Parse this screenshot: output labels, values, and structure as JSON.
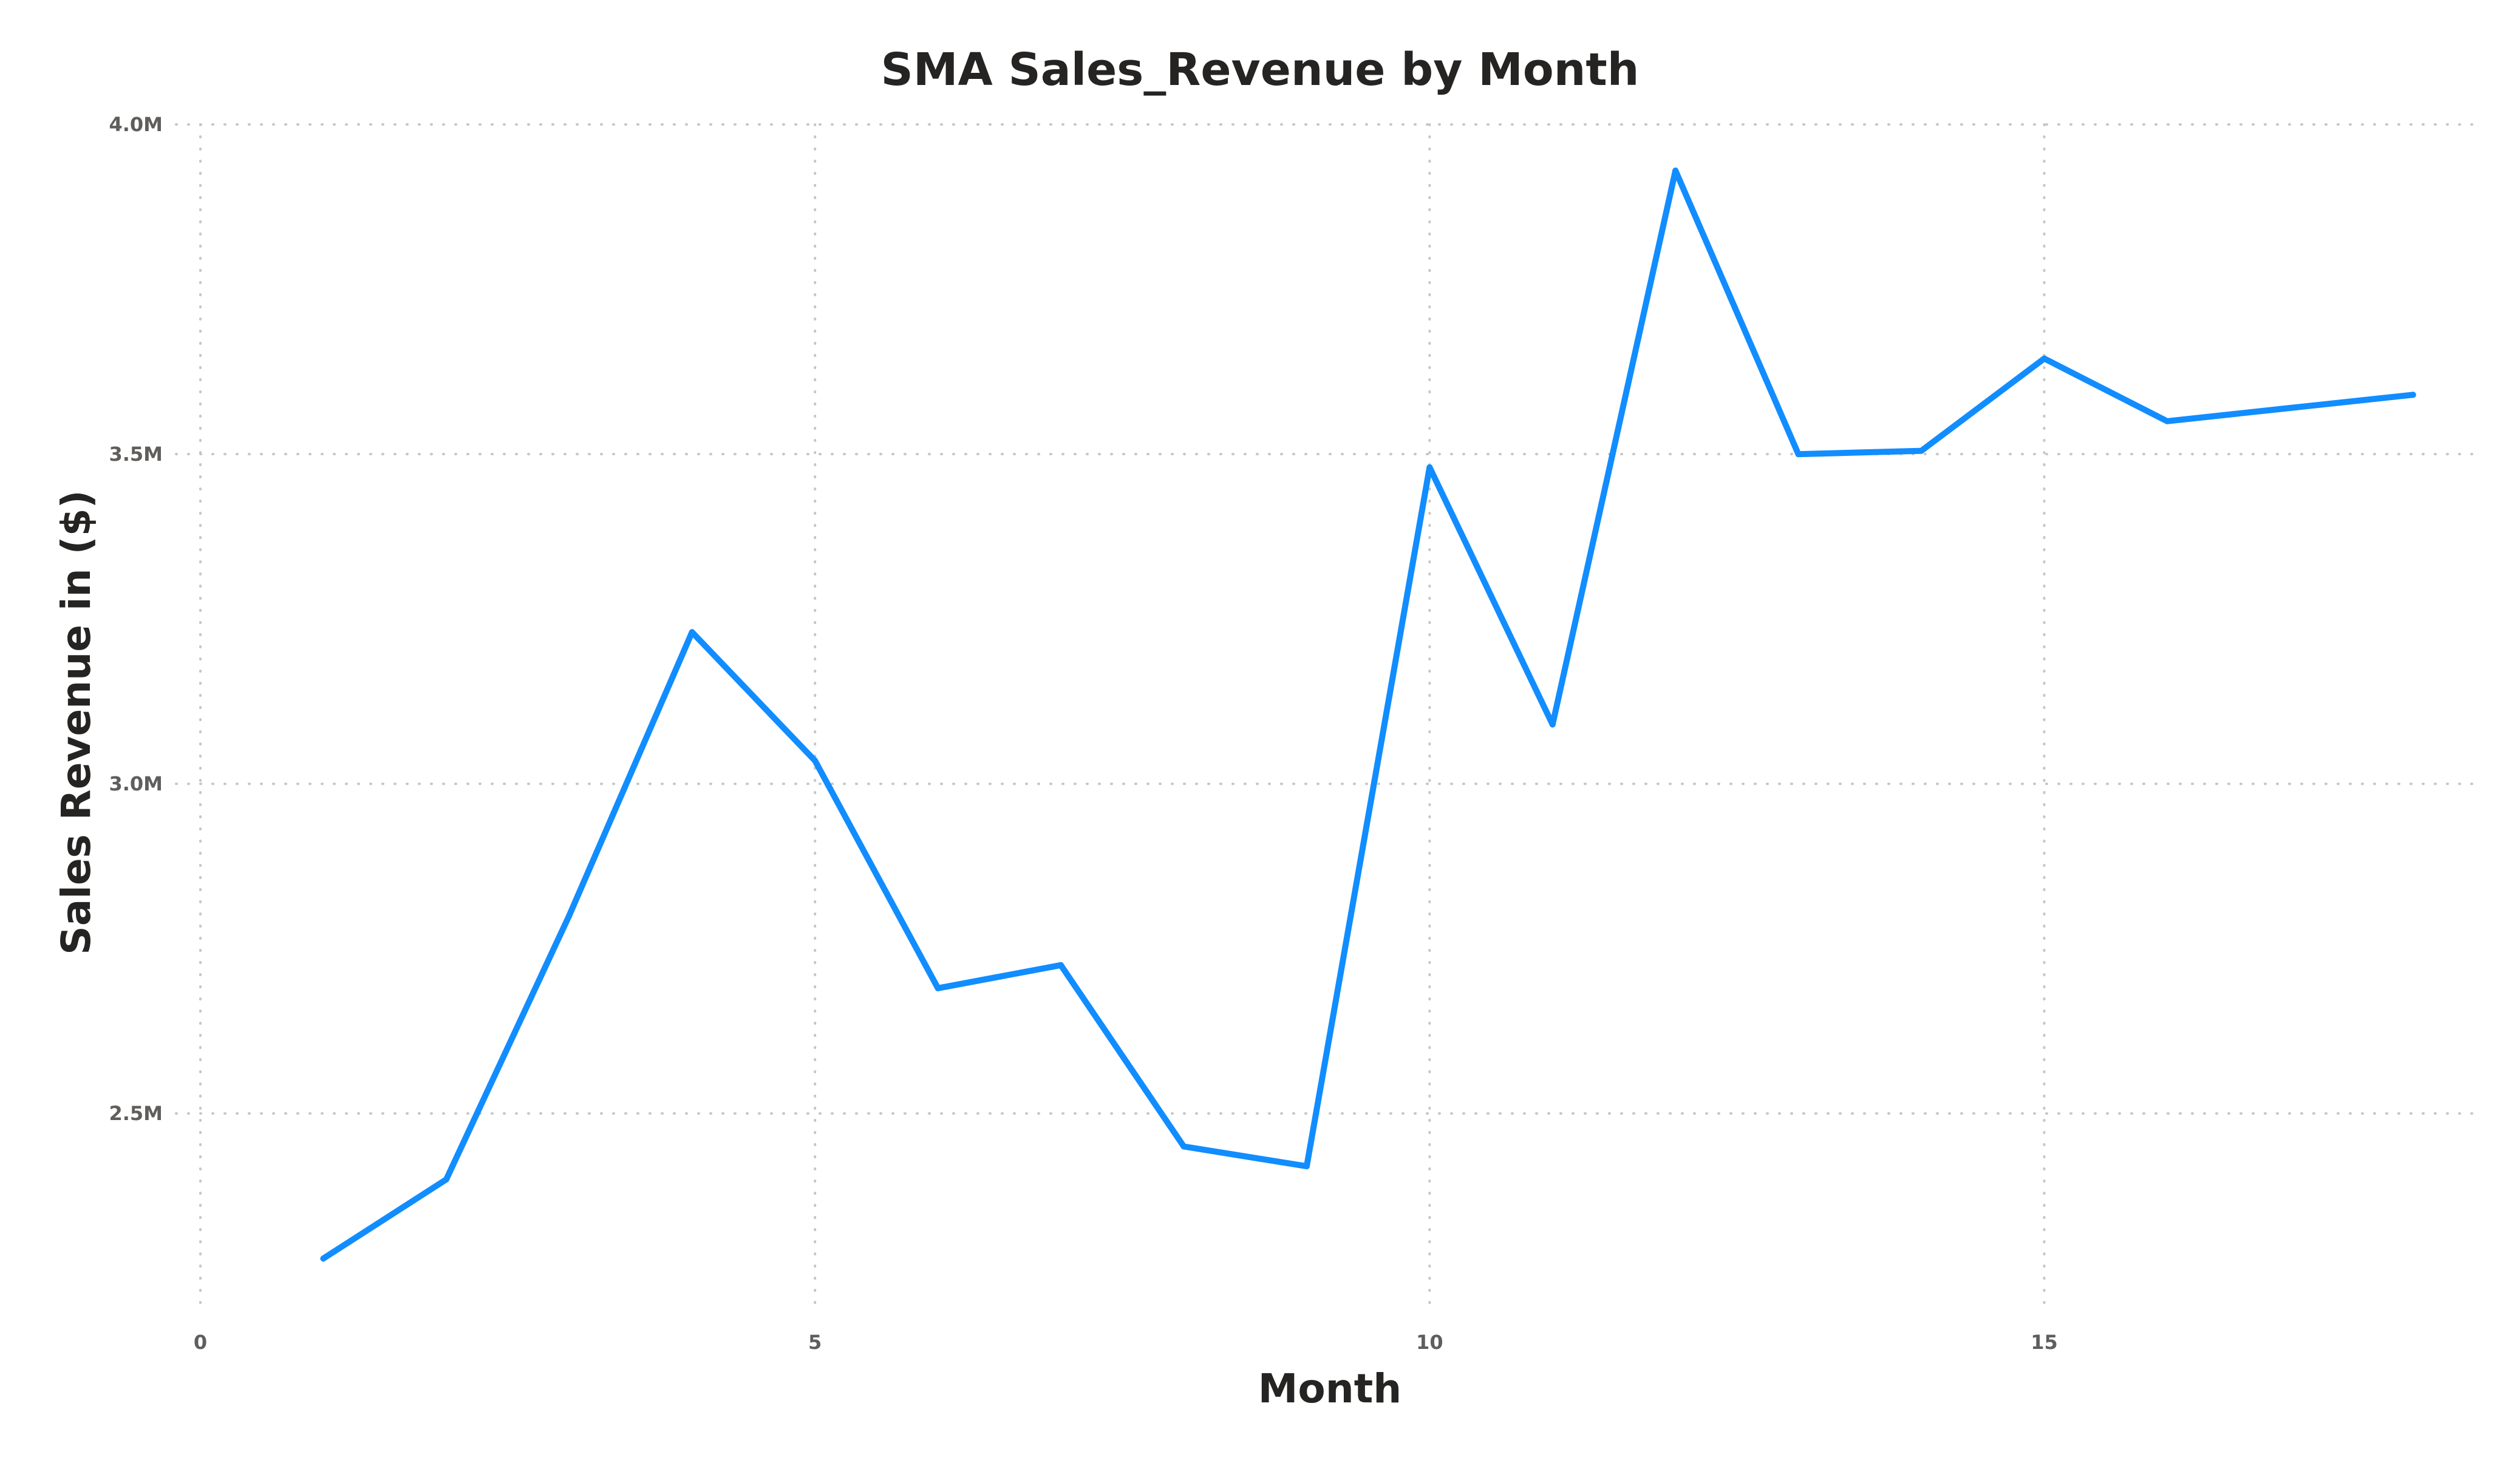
{
  "chart_data": {
    "type": "line",
    "title": "SMA Sales_Revenue by Month",
    "xlabel": "Month",
    "ylabel": "Sales Revenue in ($)",
    "xlim": [
      0,
      18.5
    ],
    "ylim": [
      2200000,
      4000000
    ],
    "x_ticks": [
      0,
      5,
      10,
      15
    ],
    "x_tick_labels": [
      "0",
      "5",
      "10",
      "15"
    ],
    "y_ticks": [
      2500000,
      3000000,
      3500000,
      4000000
    ],
    "y_tick_labels": [
      "2.5M",
      "3.0M",
      "3.5M",
      "4.0M"
    ],
    "grid": true,
    "series_color": "#118DFF",
    "series": [
      {
        "x": [
          1,
          2,
          3,
          4,
          5,
          6,
          7,
          8,
          9,
          10,
          11,
          12,
          13,
          14,
          15,
          16,
          17,
          18
        ],
        "values": [
          2280000,
          2400000,
          2800000,
          3230000,
          3035000,
          2690000,
          2725000,
          2450000,
          2420000,
          3480000,
          3090000,
          3930000,
          3500000,
          3505000,
          3645000,
          3550000,
          3570000,
          3590000
        ]
      }
    ]
  }
}
